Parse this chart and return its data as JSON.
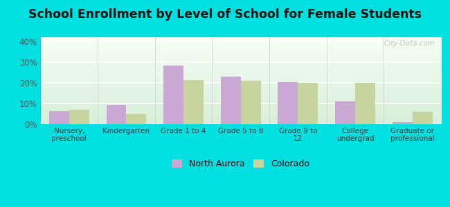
{
  "title": "School Enrollment by Level of School for Female Students",
  "categories": [
    "Nursery,\npreschool",
    "Kindergarten",
    "Grade 1 to 4",
    "Grade 5 to 8",
    "Grade 9 to\n12",
    "College\nundergrad",
    "Graduate or\nprofessional"
  ],
  "north_aurora": [
    6.5,
    9.5,
    28.5,
    23.0,
    20.5,
    11.0,
    1.0
  ],
  "colorado": [
    7.0,
    5.0,
    21.5,
    21.0,
    20.0,
    20.0,
    6.0
  ],
  "north_aurora_color": "#c9a8d4",
  "colorado_color": "#c8d4a0",
  "background_color": "#00e0e0",
  "plot_bg_top": "#d8eeda",
  "plot_bg_bottom": "#f5fff5",
  "title_fontsize": 12.5,
  "ylim": [
    0,
    42
  ],
  "yticks": [
    0,
    10,
    20,
    30,
    40
  ],
  "ytick_labels": [
    "0%",
    "10%",
    "20%",
    "30%",
    "40%"
  ],
  "legend_north_aurora": "North Aurora",
  "legend_colorado": "Colorado",
  "watermark": "City-Data.com"
}
